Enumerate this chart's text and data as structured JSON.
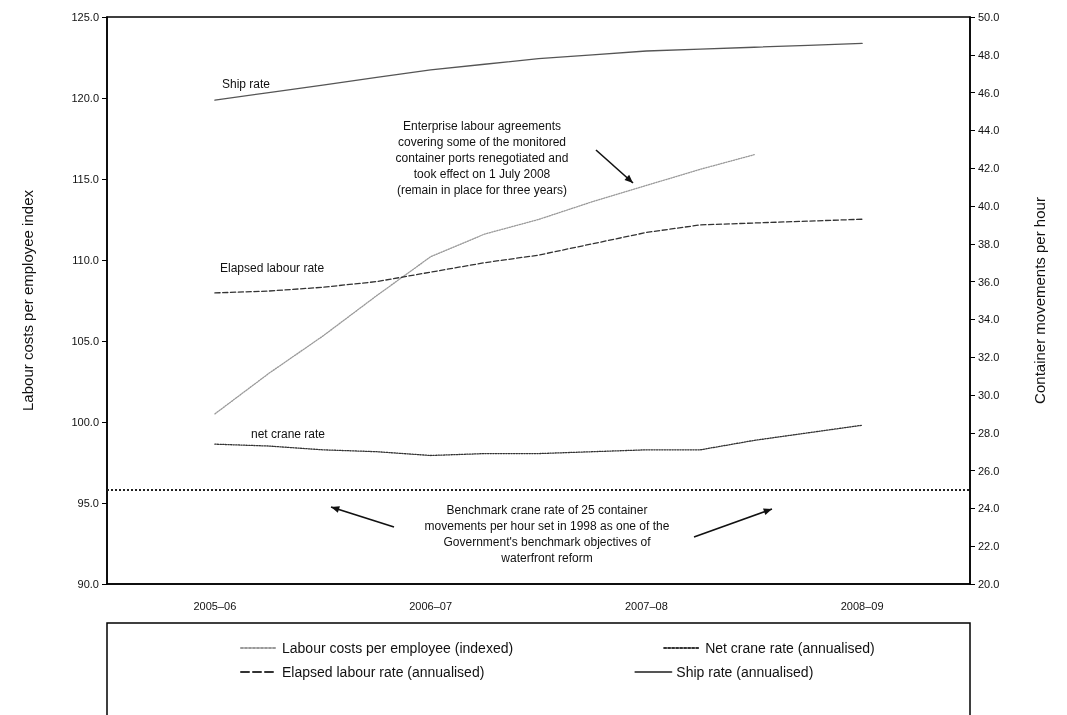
{
  "chart_data": {
    "type": "line",
    "ylabel": "Labour costs per employee index",
    "y2label": "Container movements per hour",
    "categories": [
      null,
      null,
      "2005–06",
      null,
      null,
      null,
      "2006–07",
      null,
      null,
      null,
      "2007–08",
      null,
      null,
      null,
      "2008–09",
      null,
      null
    ],
    "ylim": [
      90,
      125
    ],
    "yticks": [
      {
        "value": 90,
        "label": "90.0"
      },
      {
        "value": 95,
        "label": "95.0"
      },
      {
        "value": 100,
        "label": "100.0"
      },
      {
        "value": 105,
        "label": "105.0"
      },
      {
        "value": 110,
        "label": "110.0"
      },
      {
        "value": 115,
        "label": "115.0"
      },
      {
        "value": 120,
        "label": "120.0"
      },
      {
        "value": 125,
        "label": "125.0"
      }
    ],
    "y2lim": [
      20,
      50
    ],
    "y2ticks": [
      {
        "value": 20,
        "label": "20.0"
      },
      {
        "value": 22,
        "label": "22.0"
      },
      {
        "value": 24,
        "label": "24.0"
      },
      {
        "value": 26,
        "label": "26.0"
      },
      {
        "value": 28,
        "label": "28.0"
      },
      {
        "value": 30,
        "label": "30.0"
      },
      {
        "value": 32,
        "label": "32.0"
      },
      {
        "value": 34,
        "label": "34.0"
      },
      {
        "value": 36,
        "label": "36.0"
      },
      {
        "value": 38,
        "label": "38.0"
      },
      {
        "value": 40,
        "label": "40.0"
      },
      {
        "value": 42,
        "label": "42.0"
      },
      {
        "value": 44,
        "label": "44.0"
      },
      {
        "value": 46,
        "label": "46.0"
      },
      {
        "value": 48,
        "label": "48.0"
      },
      {
        "value": 50,
        "label": "50.0"
      }
    ],
    "grid": false,
    "legend": "bottom",
    "marker": "none",
    "series": [
      {
        "name": "Labour costs per employee (indexed)",
        "color": "#999999",
        "line_style": "dotted",
        "values": [
          null,
          null,
          100.5,
          103.0,
          105.3,
          107.8,
          110.2,
          111.6,
          112.5,
          113.6,
          114.6,
          115.6,
          116.5,
          null,
          null,
          null,
          null
        ]
      },
      {
        "name": "Net crane rate (annualised)",
        "color": "#333333",
        "line_style": "dotted",
        "axis": "y2",
        "values": [
          null,
          null,
          27.4,
          27.3,
          27.1,
          27.0,
          26.8,
          26.9,
          26.9,
          27.0,
          27.1,
          27.1,
          27.6,
          28.0,
          28.4,
          null,
          null
        ]
      },
      {
        "name": "Elapsed labour rate (annualised)",
        "color": "#333333",
        "line_style": "dashed",
        "axis": "y2",
        "values": [
          null,
          null,
          35.4,
          35.5,
          35.7,
          36.0,
          36.5,
          37.0,
          37.4,
          38.0,
          38.6,
          39.0,
          39.1,
          39.2,
          39.3,
          null,
          null
        ]
      },
      {
        "name": "Ship rate (annualised)",
        "color": "#555555",
        "line_style": "solid",
        "axis": "y2",
        "values": [
          null,
          null,
          45.6,
          46.0,
          46.4,
          46.8,
          47.2,
          47.5,
          47.8,
          48.0,
          48.2,
          48.3,
          48.4,
          48.5,
          48.6,
          null,
          null
        ]
      }
    ],
    "ref_lines": [
      {
        "axis": "y2",
        "value": 25,
        "color": "#222222",
        "line_style": "dotted"
      }
    ],
    "annotations": [
      "Ship rate",
      "Elapsed labour rate",
      "net crane rate",
      "Enterprise labour agreements\ncovering some of the monitored\ncontainer ports renegotiated and\ntook effect on 1 July 2008\n(remain in place for three years)",
      "Benchmark crane rate of 25 container\nmovements per hour set in 1998 as one of the\nGovernment's benchmark objectives of\nwaterfront reform"
    ]
  }
}
